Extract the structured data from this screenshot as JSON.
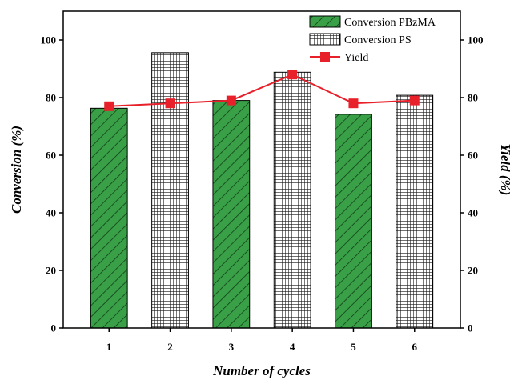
{
  "chart_data": {
    "type": "bar",
    "categories": [
      "1",
      "2",
      "3",
      "4",
      "5",
      "6"
    ],
    "xlabel": "Number of cycles",
    "ylabel": "Conversion (%)",
    "y2label": "Yield (%)",
    "ylim": [
      0,
      110
    ],
    "y2lim": [
      0,
      110
    ],
    "yticks": [
      0,
      20,
      40,
      60,
      80,
      100
    ],
    "series": [
      {
        "name": "Conversion PBzMA",
        "kind": "bar",
        "pattern": "diagonal-hatch",
        "color": "#3aa048",
        "values": [
          76.3,
          null,
          79.0,
          null,
          74.2,
          null
        ]
      },
      {
        "name": "Conversion PS",
        "kind": "bar",
        "pattern": "grid",
        "color": "#000000",
        "values": [
          null,
          95.6,
          null,
          88.8,
          null,
          80.8
        ]
      },
      {
        "name": "Yield",
        "kind": "line",
        "marker": "square",
        "color": "#e8202a",
        "axis": "right",
        "values": [
          77.0,
          78.0,
          79.0,
          88.0,
          78.0,
          79.0
        ]
      }
    ],
    "legend": "top-right",
    "grid": false
  }
}
